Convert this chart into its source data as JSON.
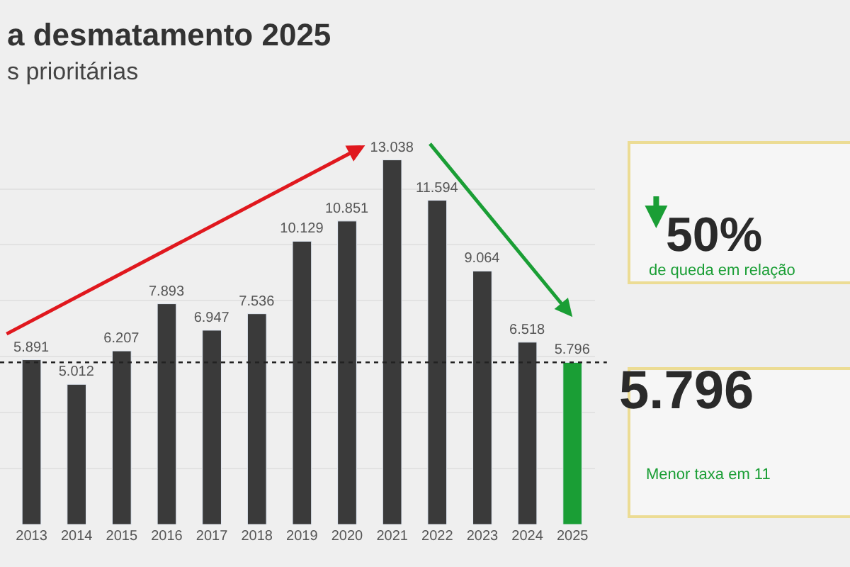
{
  "chart_data": {
    "type": "bar",
    "title": "a desmatamento 2025",
    "subtitle": "s prioritárias",
    "categories": [
      "2013",
      "2014",
      "2015",
      "2016",
      "2017",
      "2018",
      "2019",
      "2020",
      "2021",
      "2022",
      "2023",
      "2024",
      "2025"
    ],
    "values": [
      5891,
      5012,
      6207,
      7893,
      6947,
      7536,
      10129,
      10851,
      13038,
      11594,
      9064,
      6518,
      5796
    ],
    "value_labels": [
      "5.891",
      "5.012",
      "6.207",
      "7.893",
      "6.947",
      "7.536",
      "10.129",
      "10.851",
      "13.038",
      "11.594",
      "9.064",
      "6.518",
      "5.796"
    ],
    "colors": [
      "#3a3a3a",
      "#3a3a3a",
      "#3a3a3a",
      "#3a3a3a",
      "#3a3a3a",
      "#3a3a3a",
      "#3a3a3a",
      "#3a3a3a",
      "#3a3a3a",
      "#3a3a3a",
      "#3a3a3a",
      "#3a3a3a",
      "#1a9e35"
    ],
    "ref_lines": [
      {
        "axis": "y",
        "value": 5796,
        "label": null,
        "color": "#222222",
        "line_style": "dotted"
      }
    ],
    "annotations": [
      "50%",
      "de queda em relação",
      "5.796",
      "Menor taxa em 11"
    ],
    "grid": "y",
    "tick_labels": "x",
    "legend": false
  }
}
